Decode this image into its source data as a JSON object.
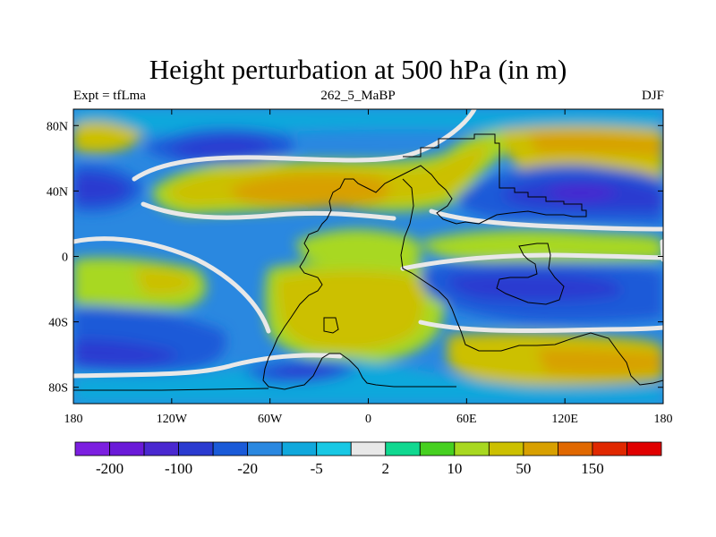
{
  "title": "Height perturbation at 500 hPa (in m)",
  "subtitle_left": "Expt = tfLma",
  "subtitle_center": "262_5_MaBP",
  "subtitle_right": "DJF",
  "x_axis": {
    "ticks": [
      {
        "value": -180,
        "label": "180"
      },
      {
        "value": -120,
        "label": "120W"
      },
      {
        "value": -60,
        "label": "60W"
      },
      {
        "value": 0,
        "label": "0"
      },
      {
        "value": 60,
        "label": "60E"
      },
      {
        "value": 120,
        "label": "120E"
      },
      {
        "value": 180,
        "label": "180"
      }
    ],
    "range": [
      -180,
      180
    ]
  },
  "y_axis": {
    "ticks": [
      {
        "value": 80,
        "label": "80N"
      },
      {
        "value": 40,
        "label": "40N"
      },
      {
        "value": 0,
        "label": "0"
      },
      {
        "value": -40,
        "label": "40S"
      },
      {
        "value": -80,
        "label": "80S"
      }
    ],
    "range": [
      -90,
      90
    ]
  },
  "colorbar": {
    "colors": [
      "#7c1fe0",
      "#6a1ad8",
      "#4a28d0",
      "#2a3ad0",
      "#1a5ad8",
      "#2a88e0",
      "#10a8dc",
      "#18c8e4",
      "#e8e8e8",
      "#10d890",
      "#46d020",
      "#a8d820",
      "#ccc000",
      "#d8a000",
      "#e06800",
      "#e02800",
      "#e00000"
    ],
    "labels": [
      {
        "boundary": 1,
        "text": "-200"
      },
      {
        "boundary": 3,
        "text": "-100"
      },
      {
        "boundary": 5,
        "text": "-20"
      },
      {
        "boundary": 7,
        "text": "-5"
      },
      {
        "boundary": 9,
        "text": "2"
      },
      {
        "boundary": 11,
        "text": "10"
      },
      {
        "boundary": 13,
        "text": "50"
      },
      {
        "boundary": 15,
        "text": "150"
      }
    ]
  },
  "map_fields": [
    {
      "name": "nh-polar-high",
      "color": "#ccc000",
      "cx": 140,
      "cy": 68,
      "rx": 40,
      "ry": 10
    },
    {
      "name": "nh-atlantic-high",
      "color": "#ccc000",
      "cx": -40,
      "cy": 38,
      "rx": 75,
      "ry": 16
    },
    {
      "name": "nh-atlantic-core",
      "color": "#e06800",
      "cx": -20,
      "cy": 40,
      "rx": 40,
      "ry": 8
    },
    {
      "name": "nh-pacific-low",
      "color": "#2a3ad0",
      "cx": -130,
      "cy": 63,
      "rx": 38,
      "ry": 10
    },
    {
      "name": "nh-asia-low",
      "color": "#2a3ad0",
      "cx": 130,
      "cy": 38,
      "rx": 50,
      "ry": 12
    },
    {
      "name": "sh-pacific-low",
      "color": "#1a5ad8",
      "cx": 120,
      "cy": -25,
      "rx": 65,
      "ry": 14
    },
    {
      "name": "sh-africa-high",
      "color": "#ccc000",
      "cx": 0,
      "cy": -30,
      "rx": 70,
      "ry": 32
    }
  ],
  "map_notes": "Map axis ranges in degrees longitude / latitude"
}
